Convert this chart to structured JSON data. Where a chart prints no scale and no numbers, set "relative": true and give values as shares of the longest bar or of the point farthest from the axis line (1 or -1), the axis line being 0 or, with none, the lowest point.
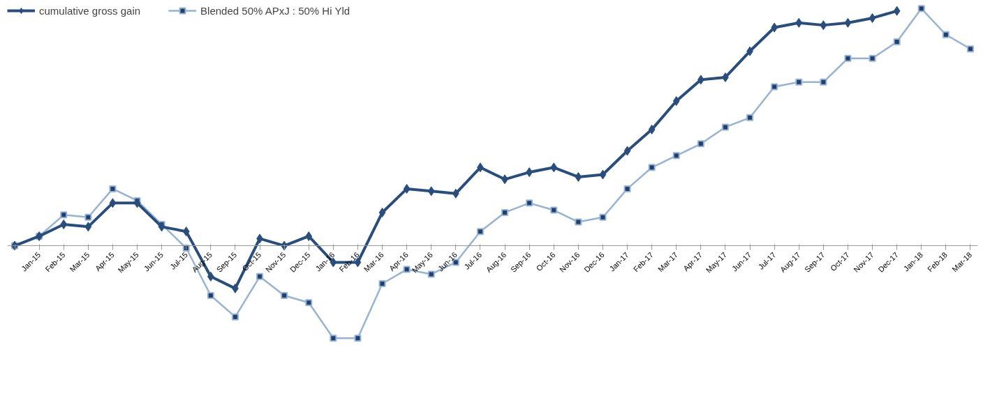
{
  "chart_data": {
    "type": "line",
    "relative": true,
    "categories": [
      null,
      "Jan-15",
      "Feb-15",
      "Mar-15",
      "Apr-15",
      "May-15",
      "Jun-15",
      "Jul-15",
      "Aug-15",
      "Sep-15",
      "Oct-15",
      "Nov-15",
      "Dec-15",
      "Jan-16",
      "Feb-16",
      "Mar-16",
      "Apr-16",
      "May-16",
      "Jun-16",
      "Jul-16",
      "Aug-16",
      "Sep-16",
      "Oct-16",
      "Nov-16",
      "Dec-16",
      "Jan-17",
      "Feb-17",
      "Mar-17",
      "Apr-17",
      "May-17",
      "Jun-17",
      "Jul-17",
      "Aug-17",
      "Sep-17",
      "Oct-17",
      "Nov-17",
      "Dec-17",
      "Jan-18",
      "Feb-18",
      "Mar-18"
    ],
    "series": [
      {
        "name": "cumulative gross gain",
        "color": "#284e80",
        "marker": "diamond",
        "values": [
          0,
          0.04,
          0.09,
          0.08,
          0.18,
          0.18,
          0.08,
          0.06,
          -0.13,
          -0.18,
          0.03,
          0,
          0.04,
          -0.07,
          -0.07,
          0.14,
          0.24,
          0.23,
          0.22,
          0.33,
          0.28,
          0.31,
          0.33,
          0.29,
          0.3,
          0.4,
          0.49,
          0.61,
          0.7,
          0.71,
          0.82,
          0.92,
          0.94,
          0.93,
          0.94,
          0.96,
          0.99,
          null,
          null,
          null
        ]
      },
      {
        "name": "Blended 50% APxJ : 50% Hi Yld",
        "color": "#95b3d7",
        "marker": "square",
        "values": [
          0,
          0.04,
          0.13,
          0.12,
          0.24,
          0.19,
          0.09,
          -0.01,
          -0.21,
          -0.3,
          -0.13,
          -0.21,
          -0.24,
          -0.39,
          -0.39,
          -0.16,
          -0.1,
          -0.12,
          -0.07,
          0.06,
          0.14,
          0.18,
          0.15,
          0.1,
          0.12,
          0.24,
          0.33,
          0.38,
          0.43,
          0.5,
          0.54,
          0.67,
          0.69,
          0.69,
          0.79,
          0.79,
          0.86,
          1,
          0.89,
          0.83
        ]
      }
    ],
    "legend": "top",
    "grid": false
  }
}
